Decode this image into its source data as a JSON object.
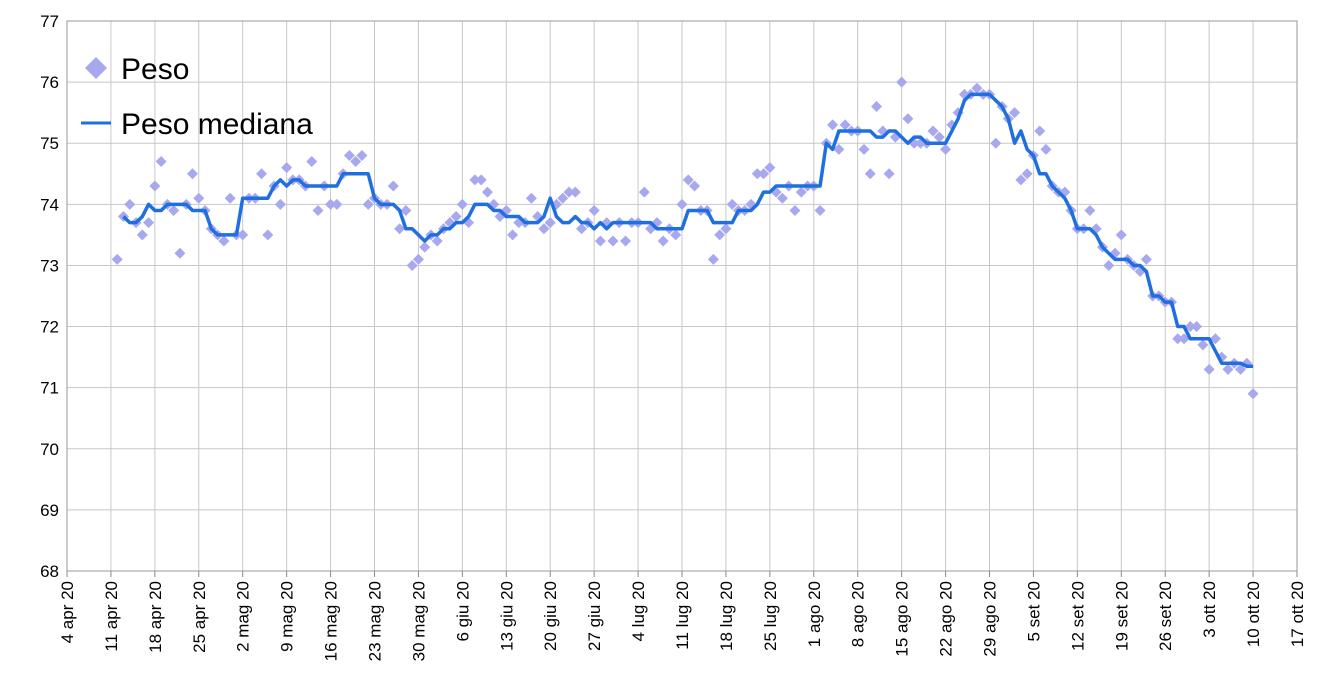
{
  "chart_data": {
    "type": "scatter",
    "series": [
      {
        "name": "Peso",
        "style": "scatter",
        "color": "#a8a8ee",
        "values": [
          73.1,
          73.8,
          74.0,
          73.7,
          73.5,
          73.7,
          74.3,
          74.7,
          74.0,
          73.9,
          73.2,
          74.0,
          74.5,
          74.1,
          73.9,
          73.6,
          73.5,
          73.4,
          74.1,
          73.5,
          73.5,
          74.1,
          74.1,
          74.5,
          73.5,
          74.3,
          74.0,
          74.6,
          74.4,
          74.4,
          74.3,
          74.7,
          73.9,
          74.3,
          74.0,
          74.0,
          74.5,
          74.8,
          74.7,
          74.8,
          74.0,
          74.1,
          74.0,
          74.0,
          74.3,
          73.6,
          73.9,
          73.0,
          73.1,
          73.3,
          73.5,
          73.4,
          73.6,
          73.7,
          73.8,
          74.0,
          73.7,
          74.4,
          74.4,
          74.2,
          74.0,
          73.8,
          73.9,
          73.5,
          73.7,
          73.7,
          74.1,
          73.8,
          73.6,
          73.7,
          74.0,
          74.1,
          74.2,
          74.2,
          73.6,
          73.7,
          73.9,
          73.4,
          73.7,
          73.4,
          73.7,
          73.4,
          73.7,
          73.7,
          74.2,
          73.6,
          73.7,
          73.4,
          73.6,
          73.5,
          74.0,
          74.4,
          74.3,
          73.9,
          73.9,
          73.1,
          73.5,
          73.6,
          74.0,
          73.9,
          73.9,
          74.0,
          74.5,
          74.5,
          74.6,
          74.2,
          74.1,
          74.3,
          73.9,
          74.2,
          74.3,
          74.3,
          73.9,
          75.0,
          75.3,
          74.9,
          75.3,
          75.2,
          75.2,
          74.9,
          74.5,
          75.6,
          75.2,
          74.5,
          75.1,
          76.0,
          75.4,
          75.0,
          75.0,
          75.0,
          75.2,
          75.1,
          74.9,
          75.3,
          75.5,
          75.8,
          75.8,
          75.9,
          75.8,
          75.8,
          75.0,
          75.6,
          75.4,
          75.5,
          74.4,
          74.5,
          74.8,
          75.2,
          74.9,
          74.3,
          74.2,
          74.2,
          73.9,
          73.6,
          73.6,
          73.9,
          73.6,
          73.3,
          73.0,
          73.2,
          73.5,
          73.1,
          73.0,
          72.9,
          73.1,
          72.5,
          72.5,
          72.4,
          72.4,
          71.8,
          71.8,
          72.0,
          72.0,
          71.7,
          71.3,
          71.8,
          71.5,
          71.3,
          71.4,
          71.3,
          71.4,
          70.9
        ]
      },
      {
        "name": "Peso mediana",
        "style": "line",
        "color": "#1f6fe0",
        "values": [
          null,
          73.8,
          73.7,
          73.7,
          73.8,
          74.0,
          73.9,
          73.9,
          74.0,
          74.0,
          74.0,
          74.0,
          73.9,
          73.9,
          73.9,
          73.6,
          73.5,
          73.5,
          73.5,
          73.5,
          74.1,
          74.1,
          74.1,
          74.1,
          74.1,
          74.3,
          74.4,
          74.3,
          74.4,
          74.4,
          74.3,
          74.3,
          74.3,
          74.3,
          74.3,
          74.3,
          74.5,
          74.5,
          74.5,
          74.5,
          74.5,
          74.1,
          74.0,
          74.0,
          74.0,
          73.9,
          73.6,
          73.6,
          73.5,
          73.4,
          73.5,
          73.5,
          73.6,
          73.6,
          73.7,
          73.7,
          73.8,
          74.0,
          74.0,
          74.0,
          73.9,
          73.9,
          73.8,
          73.8,
          73.8,
          73.7,
          73.7,
          73.7,
          73.8,
          74.1,
          73.8,
          73.7,
          73.7,
          73.8,
          73.7,
          73.7,
          73.6,
          73.7,
          73.6,
          73.7,
          73.7,
          73.7,
          73.7,
          73.7,
          73.7,
          73.7,
          73.6,
          73.6,
          73.6,
          73.6,
          73.6,
          73.9,
          73.9,
          73.9,
          73.9,
          73.7,
          73.7,
          73.7,
          73.7,
          73.9,
          73.9,
          73.9,
          74.0,
          74.2,
          74.2,
          74.3,
          74.3,
          74.3,
          74.3,
          74.3,
          74.3,
          74.3,
          74.3,
          75.0,
          74.9,
          75.2,
          75.2,
          75.2,
          75.2,
          75.2,
          75.2,
          75.1,
          75.1,
          75.2,
          75.2,
          75.1,
          75.0,
          75.1,
          75.1,
          75.0,
          75.0,
          75.0,
          75.0,
          75.2,
          75.4,
          75.7,
          75.8,
          75.8,
          75.8,
          75.8,
          75.7,
          75.6,
          75.4,
          75.0,
          75.2,
          74.9,
          74.8,
          74.5,
          74.5,
          74.3,
          74.2,
          74.1,
          73.9,
          73.6,
          73.6,
          73.6,
          73.5,
          73.3,
          73.2,
          73.1,
          73.1,
          73.1,
          73.0,
          73.0,
          72.9,
          72.5,
          72.5,
          72.4,
          72.4,
          72.0,
          72.0,
          71.8,
          71.8,
          71.8,
          71.8,
          71.6,
          71.4,
          71.4,
          71.4,
          71.4,
          71.35,
          71.35
        ]
      }
    ],
    "x": [
      "2020-04-12",
      "2020-04-13",
      "2020-04-14",
      "2020-04-15",
      "2020-04-16",
      "2020-04-17",
      "2020-04-18",
      "2020-04-19",
      "2020-04-20",
      "2020-04-21",
      "2020-04-22",
      "2020-04-23",
      "2020-04-24",
      "2020-04-25",
      "2020-04-26",
      "2020-04-27",
      "2020-04-28",
      "2020-04-29",
      "2020-04-30",
      "2020-05-01",
      "2020-05-02",
      "2020-05-03",
      "2020-05-04",
      "2020-05-05",
      "2020-05-06",
      "2020-05-07",
      "2020-05-08",
      "2020-05-09",
      "2020-05-10",
      "2020-05-11",
      "2020-05-12",
      "2020-05-13",
      "2020-05-14",
      "2020-05-15",
      "2020-05-16",
      "2020-05-17",
      "2020-05-18",
      "2020-05-19",
      "2020-05-20",
      "2020-05-21",
      "2020-05-22",
      "2020-05-23",
      "2020-05-24",
      "2020-05-25",
      "2020-05-26",
      "2020-05-27",
      "2020-05-28",
      "2020-05-29",
      "2020-05-30",
      "2020-05-31",
      "2020-06-01",
      "2020-06-02",
      "2020-06-03",
      "2020-06-04",
      "2020-06-05",
      "2020-06-06",
      "2020-06-07",
      "2020-06-08",
      "2020-06-09",
      "2020-06-10",
      "2020-06-11",
      "2020-06-12",
      "2020-06-13",
      "2020-06-14",
      "2020-06-15",
      "2020-06-16",
      "2020-06-17",
      "2020-06-18",
      "2020-06-19",
      "2020-06-20",
      "2020-06-21",
      "2020-06-22",
      "2020-06-23",
      "2020-06-24",
      "2020-06-25",
      "2020-06-26",
      "2020-06-27",
      "2020-06-28",
      "2020-06-29",
      "2020-06-30",
      "2020-07-01",
      "2020-07-02",
      "2020-07-03",
      "2020-07-04",
      "2020-07-05",
      "2020-07-06",
      "2020-07-07",
      "2020-07-08",
      "2020-07-09",
      "2020-07-10",
      "2020-07-11",
      "2020-07-12",
      "2020-07-13",
      "2020-07-14",
      "2020-07-15",
      "2020-07-16",
      "2020-07-17",
      "2020-07-18",
      "2020-07-19",
      "2020-07-20",
      "2020-07-21",
      "2020-07-22",
      "2020-07-23",
      "2020-07-24",
      "2020-07-25",
      "2020-07-26",
      "2020-07-27",
      "2020-07-28",
      "2020-07-29",
      "2020-07-30",
      "2020-07-31",
      "2020-08-01",
      "2020-08-02",
      "2020-08-03",
      "2020-08-04",
      "2020-08-05",
      "2020-08-06",
      "2020-08-07",
      "2020-08-08",
      "2020-08-09",
      "2020-08-10",
      "2020-08-11",
      "2020-08-12",
      "2020-08-13",
      "2020-08-14",
      "2020-08-15",
      "2020-08-16",
      "2020-08-17",
      "2020-08-18",
      "2020-08-19",
      "2020-08-20",
      "2020-08-21",
      "2020-08-22",
      "2020-08-23",
      "2020-08-24",
      "2020-08-25",
      "2020-08-26",
      "2020-08-27",
      "2020-08-28",
      "2020-08-29",
      "2020-08-30",
      "2020-08-31",
      "2020-09-01",
      "2020-09-02",
      "2020-09-03",
      "2020-09-04",
      "2020-09-05",
      "2020-09-06",
      "2020-09-07",
      "2020-09-08",
      "2020-09-09",
      "2020-09-10",
      "2020-09-11",
      "2020-09-12",
      "2020-09-13",
      "2020-09-14",
      "2020-09-15",
      "2020-09-16",
      "2020-09-17",
      "2020-09-18",
      "2020-09-19",
      "2020-09-20",
      "2020-09-21",
      "2020-09-22",
      "2020-09-23",
      "2020-09-24",
      "2020-09-25",
      "2020-09-26",
      "2020-09-27",
      "2020-09-28",
      "2020-09-29",
      "2020-09-30",
      "2020-10-01",
      "2020-10-02",
      "2020-10-03",
      "2020-10-04",
      "2020-10-05",
      "2020-10-06",
      "2020-10-07",
      "2020-10-08",
      "2020-10-09",
      "2020-10-10"
    ],
    "xlim": [
      "2020-04-04",
      "2020-10-17"
    ],
    "xticks": [
      {
        "value": "2020-04-04",
        "label": "4 apr 20"
      },
      {
        "value": "2020-04-11",
        "label": "11 apr 20"
      },
      {
        "value": "2020-04-18",
        "label": "18 apr 20"
      },
      {
        "value": "2020-04-25",
        "label": "25 apr 20"
      },
      {
        "value": "2020-05-02",
        "label": "2 mag 20"
      },
      {
        "value": "2020-05-09",
        "label": "9 mag 20"
      },
      {
        "value": "2020-05-16",
        "label": "16 mag 20"
      },
      {
        "value": "2020-05-23",
        "label": "23 mag 20"
      },
      {
        "value": "2020-05-30",
        "label": "30 mag 20"
      },
      {
        "value": "2020-06-06",
        "label": "6 giu 20"
      },
      {
        "value": "2020-06-13",
        "label": "13 giu 20"
      },
      {
        "value": "2020-06-20",
        "label": "20 giu 20"
      },
      {
        "value": "2020-06-27",
        "label": "27 giu 20"
      },
      {
        "value": "2020-07-04",
        "label": "4 lug 20"
      },
      {
        "value": "2020-07-11",
        "label": "11 lug 20"
      },
      {
        "value": "2020-07-18",
        "label": "18 lug 20"
      },
      {
        "value": "2020-07-25",
        "label": "25 lug 20"
      },
      {
        "value": "2020-08-01",
        "label": "1 ago 20"
      },
      {
        "value": "2020-08-08",
        "label": "8 ago 20"
      },
      {
        "value": "2020-08-15",
        "label": "15 ago 20"
      },
      {
        "value": "2020-08-22",
        "label": "22 ago 20"
      },
      {
        "value": "2020-08-29",
        "label": "29 ago 20"
      },
      {
        "value": "2020-09-05",
        "label": "5 set 20"
      },
      {
        "value": "2020-09-12",
        "label": "12 set 20"
      },
      {
        "value": "2020-09-19",
        "label": "19 set 20"
      },
      {
        "value": "2020-09-26",
        "label": "26 set 20"
      },
      {
        "value": "2020-10-03",
        "label": "3 ott 20"
      },
      {
        "value": "2020-10-10",
        "label": "10 ott 20"
      },
      {
        "value": "2020-10-17",
        "label": "17 ott 20"
      }
    ],
    "ylim": [
      68,
      77
    ],
    "yticks": [
      68,
      69,
      70,
      71,
      72,
      73,
      74,
      75,
      76,
      77
    ],
    "grid": true,
    "legend": "top-left"
  }
}
